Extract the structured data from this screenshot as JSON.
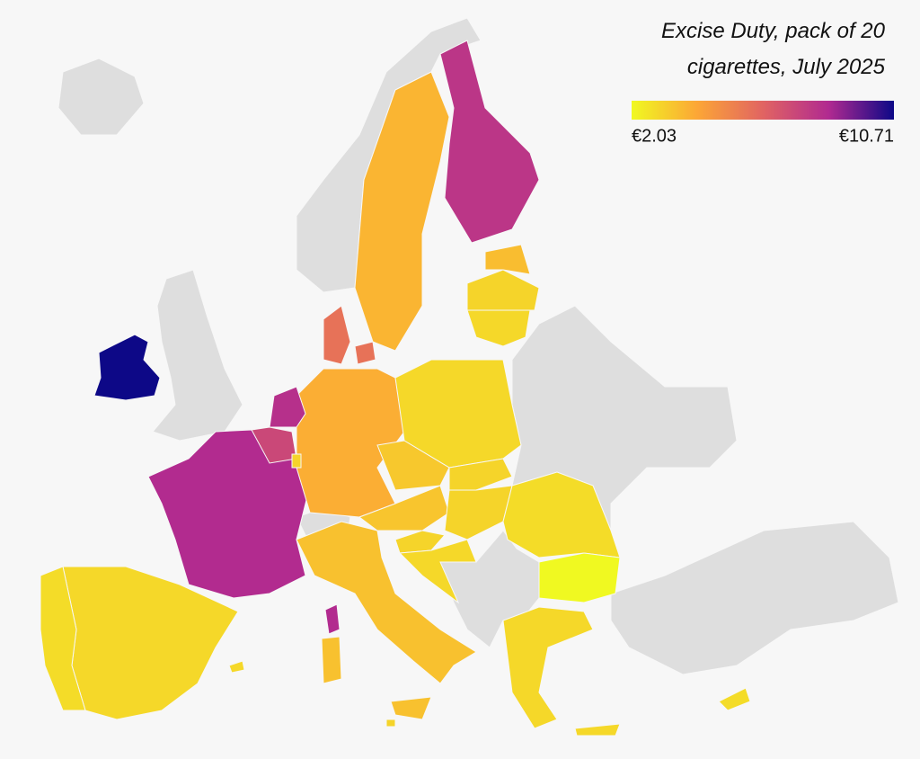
{
  "chart_data": {
    "type": "choropleth",
    "title": [
      "Excise Duty, pack of 20",
      "cigarettes, July 2025"
    ],
    "colorbar": {
      "min": {
        "value": 2.03,
        "label": "€2.03"
      },
      "max": {
        "value": 10.71,
        "label": "€10.71"
      },
      "colors": [
        "#f0f921",
        "#fca636",
        "#e16462",
        "#b12a90",
        "#0d0887"
      ]
    },
    "values": [
      10.71,
      8.5,
      2.9,
      2.8,
      3.5,
      4.0,
      8.3,
      7.4,
      5.9,
      3.8,
      8.1,
      2.9,
      3.3,
      3.4,
      3.0,
      3.0,
      2.8,
      2.03,
      2.9,
      3.0,
      2.9,
      2.9,
      3.0,
      3.6,
      3.0,
      2.8,
      3.0
    ]
  }
}
